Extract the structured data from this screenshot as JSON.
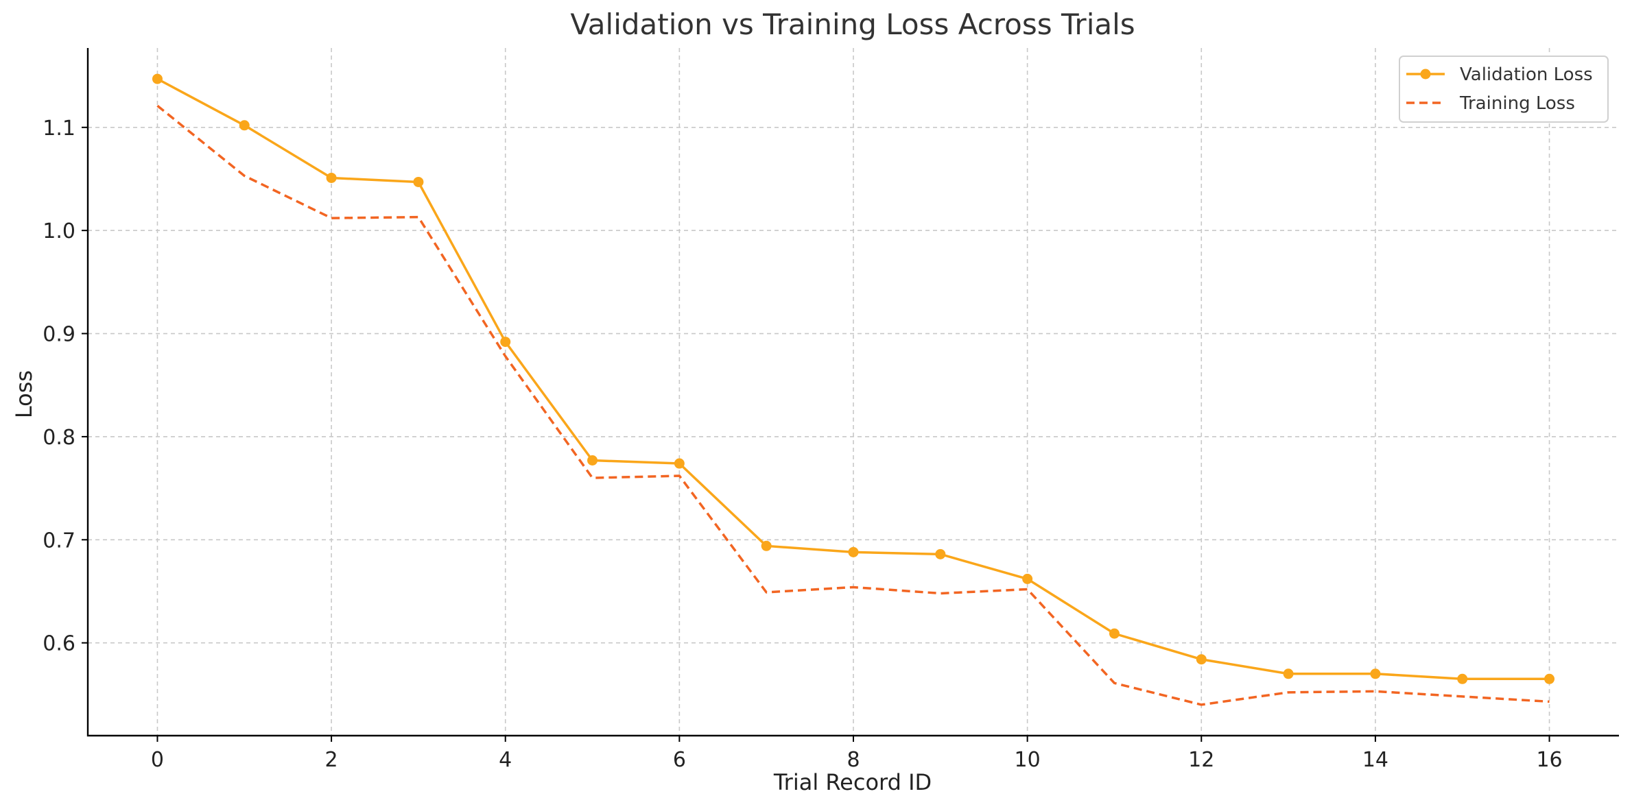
{
  "chart_data": {
    "type": "line",
    "title": "Validation vs Training Loss Across Trials",
    "xlabel": "Trial Record ID",
    "ylabel": "Loss",
    "xlim": [
      -0.8,
      16.8
    ],
    "ylim": [
      0.51,
      1.177
    ],
    "xticks": [
      0,
      2,
      4,
      6,
      8,
      10,
      12,
      14,
      16
    ],
    "yticks": [
      0.6,
      0.7,
      0.8,
      0.9,
      1.0,
      1.1
    ],
    "x": [
      0,
      1,
      2,
      3,
      4,
      5,
      6,
      7,
      8,
      9,
      10,
      11,
      12,
      13,
      14,
      15,
      16
    ],
    "grid": true,
    "legend_position": "top-right",
    "series": [
      {
        "name": "Validation Loss",
        "color": "#FAA61A",
        "style": "solid",
        "marker": "circle",
        "values": [
          1.147,
          1.102,
          1.051,
          1.047,
          0.892,
          0.777,
          0.774,
          0.694,
          0.688,
          0.686,
          0.662,
          0.609,
          0.584,
          0.57,
          0.57,
          0.565,
          0.565
        ]
      },
      {
        "name": "Training Loss",
        "color": "#F26522",
        "style": "dashed",
        "marker": "none",
        "values": [
          1.121,
          1.053,
          1.012,
          1.013,
          0.878,
          0.76,
          0.762,
          0.649,
          0.654,
          0.648,
          0.652,
          0.561,
          0.54,
          0.552,
          0.553,
          0.548,
          0.543
        ]
      }
    ]
  }
}
